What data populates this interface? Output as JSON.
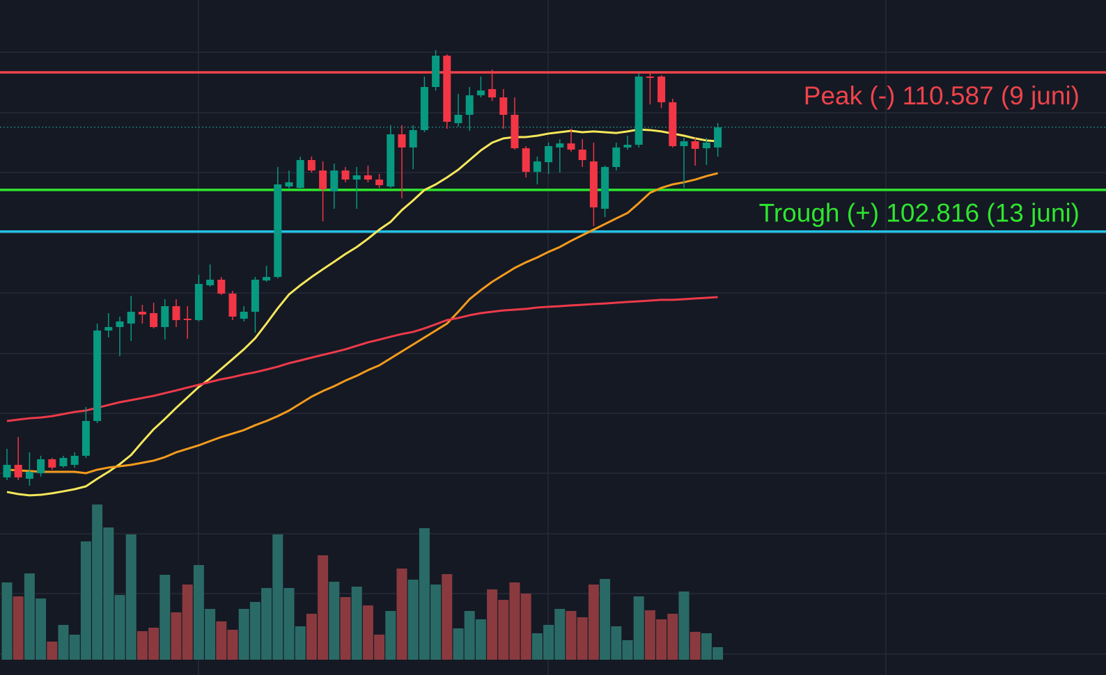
{
  "chart_data": {
    "type": "candlestick",
    "ylim": [
      71.3,
      115.37
    ],
    "volume_ylim": [
      0,
      250
    ],
    "up_color": "#089981",
    "down_color": "#f23645",
    "volume_up_color": "#2a6a66",
    "volume_down_color": "#8a3a3f",
    "open": [
      83.81,
      84.64,
      83.72,
      84.09,
      85.01,
      84.55,
      84.64,
      85.24,
      87.54,
      93.52,
      93.75,
      93.98,
      94.76,
      94.67,
      93.75,
      95.13,
      94.3,
      94.21,
      96.51,
      96.88,
      95.96,
      94.3,
      94.76,
      96.83,
      97.06,
      103.04,
      102.95,
      104.79,
      104.1,
      102.72,
      104.1,
      103.5,
      103.78,
      103.5,
      103.04,
      106.49,
      105.62,
      106.77,
      109.62,
      111.69,
      107.23,
      107.78,
      109.07,
      109.48,
      108.93,
      107.78,
      105.57,
      104.01,
      104.65,
      105.62,
      105.89,
      105.48,
      104.7,
      101.57,
      104.33,
      105.62,
      105.8,
      110.31,
      110.31,
      108.61,
      105.71,
      106.03,
      105.57,
      105.62
    ],
    "high": [
      85.7,
      86.48,
      85.47,
      85.24,
      85.1,
      85.24,
      85.47,
      88.46,
      93.98,
      94.67,
      94.44,
      95.82,
      95.22,
      95.36,
      95.59,
      95.59,
      95.13,
      97.2,
      97.89,
      97.06,
      96.14,
      95.13,
      97.06,
      97.8,
      104.33,
      104.1,
      105.02,
      105.02,
      104.7,
      104.56,
      104.33,
      104.33,
      104.42,
      103.87,
      107.09,
      107.09,
      107.09,
      110.31,
      112.06,
      111.78,
      109.16,
      109.62,
      110.31,
      110.77,
      109.48,
      108.93,
      105.71,
      105.02,
      105.94,
      106.17,
      106.86,
      106.17,
      105.94,
      104.42,
      105.94,
      106.4,
      110.54,
      110.54,
      110.4,
      108.84,
      106.26,
      106.26,
      106.26,
      107.23
    ],
    "low": [
      83.63,
      83.63,
      83.26,
      83.86,
      84.32,
      84.46,
      84.46,
      85.1,
      87.4,
      93.06,
      91.82,
      92.83,
      93.98,
      93.66,
      92.92,
      93.75,
      92.97,
      94.12,
      96.42,
      95.87,
      94.21,
      94.12,
      93.38,
      96.74,
      96.97,
      102.86,
      102.86,
      103.96,
      100.74,
      101.57,
      103.32,
      101.57,
      103.32,
      102.95,
      102.95,
      102.26,
      104.19,
      106.63,
      109.39,
      106.86,
      107.0,
      106.72,
      108.93,
      108.7,
      106.86,
      105.48,
      103.64,
      103.18,
      103.87,
      103.96,
      105.34,
      104.33,
      100.42,
      101.02,
      104.1,
      105.48,
      105.62,
      108.47,
      108.24,
      105.62,
      102.95,
      104.42,
      104.47,
      105.02
    ],
    "close": [
      84.64,
      83.81,
      84.18,
      85.01,
      84.46,
      85.1,
      85.24,
      87.54,
      93.52,
      93.75,
      94.12,
      94.76,
      94.58,
      93.75,
      95.13,
      94.21,
      94.21,
      96.6,
      96.88,
      95.96,
      94.44,
      94.76,
      96.88,
      97.06,
      103.18,
      103.32,
      104.79,
      104.1,
      102.86,
      104.1,
      103.5,
      103.78,
      103.5,
      103.13,
      106.49,
      105.62,
      106.77,
      109.62,
      111.69,
      107.32,
      107.78,
      109.07,
      109.39,
      108.93,
      107.78,
      105.57,
      104.01,
      104.7,
      105.71,
      105.89,
      105.48,
      104.79,
      101.66,
      104.33,
      105.62,
      105.8,
      110.31,
      110.22,
      108.61,
      105.71,
      106.03,
      105.53,
      105.94,
      106.95
    ],
    "volume": [
      111,
      91,
      124,
      88,
      26,
      50,
      36,
      170,
      223,
      190,
      93,
      180,
      41,
      46,
      122,
      68,
      108,
      136,
      73,
      55,
      43,
      73,
      83,
      103,
      180,
      103,
      48,
      66,
      150,
      112,
      90,
      105,
      78,
      36,
      70,
      131,
      115,
      189,
      108,
      123,
      45,
      70,
      58,
      101,
      86,
      111,
      95,
      38,
      50,
      73,
      70,
      61,
      108,
      116,
      48,
      28,
      91,
      71,
      58,
      66,
      98,
      40,
      38,
      18
    ],
    "moving_averages": [
      {
        "color": "#f7e85a",
        "values": [
          82.85,
          82.71,
          82.62,
          82.66,
          82.76,
          82.89,
          83.03,
          83.22,
          83.72,
          84.18,
          84.69,
          85.29,
          86.16,
          86.99,
          87.68,
          88.41,
          89.1,
          89.79,
          90.35,
          90.99,
          91.63,
          92.28,
          93.01,
          93.98,
          94.99,
          95.91,
          96.51,
          97.06,
          97.57,
          98.07,
          98.58,
          99.04,
          99.59,
          100.19,
          100.7,
          101.48,
          102.12,
          102.81,
          103.18,
          103.64,
          104.15,
          104.79,
          105.43,
          105.94,
          106.22,
          106.31,
          106.31,
          106.4,
          106.54,
          106.63,
          106.72,
          106.63,
          106.68,
          106.63,
          106.58,
          106.68,
          106.81,
          106.77,
          106.68,
          106.54,
          106.4,
          106.22,
          106.08,
          106.03
        ]
      },
      {
        "color": "#f59b1c",
        "values": [
          84.32,
          84.27,
          84.23,
          84.18,
          84.18,
          84.18,
          84.18,
          84.09,
          84.32,
          84.46,
          84.55,
          84.64,
          84.78,
          84.92,
          85.15,
          85.47,
          85.7,
          85.93,
          86.21,
          86.48,
          86.71,
          86.94,
          87.26,
          87.54,
          87.86,
          88.23,
          88.69,
          89.15,
          89.52,
          89.84,
          90.21,
          90.53,
          90.9,
          91.22,
          91.68,
          92.14,
          92.6,
          93.06,
          93.52,
          93.98,
          94.76,
          95.59,
          96.19,
          96.74,
          97.2,
          97.66,
          98.03,
          98.35,
          98.72,
          99.04,
          99.45,
          99.82,
          100.19,
          100.56,
          100.93,
          101.29,
          101.94,
          102.63,
          102.95,
          103.18,
          103.32,
          103.5,
          103.73,
          103.92
        ]
      },
      {
        "color": "#ee3a4a",
        "values": [
          87.54,
          87.63,
          87.72,
          87.77,
          87.86,
          88.0,
          88.14,
          88.23,
          88.41,
          88.6,
          88.78,
          88.92,
          89.06,
          89.2,
          89.38,
          89.56,
          89.75,
          89.93,
          90.12,
          90.3,
          90.44,
          90.62,
          90.76,
          90.94,
          91.13,
          91.36,
          91.54,
          91.73,
          91.91,
          92.09,
          92.28,
          92.51,
          92.74,
          92.92,
          93.11,
          93.29,
          93.43,
          93.66,
          93.93,
          94.21,
          94.35,
          94.53,
          94.67,
          94.76,
          94.85,
          94.9,
          94.95,
          95.04,
          95.09,
          95.13,
          95.18,
          95.22,
          95.27,
          95.31,
          95.36,
          95.41,
          95.45,
          95.5,
          95.55,
          95.55,
          95.59,
          95.64,
          95.68,
          95.73
        ]
      }
    ],
    "levels": [
      {
        "label": "Peak (-) 110.587 (9 juni)",
        "value": 110.587,
        "color": "#f0434a"
      },
      {
        "label": "Trough (+) 102.816 (13 juni)",
        "value": 102.816,
        "color": "#2ee62e"
      },
      {
        "value": 100.06,
        "color": "#22c3e6"
      },
      {
        "value": 106.96,
        "color": "#1f9a8f",
        "dashed": true
      }
    ]
  }
}
